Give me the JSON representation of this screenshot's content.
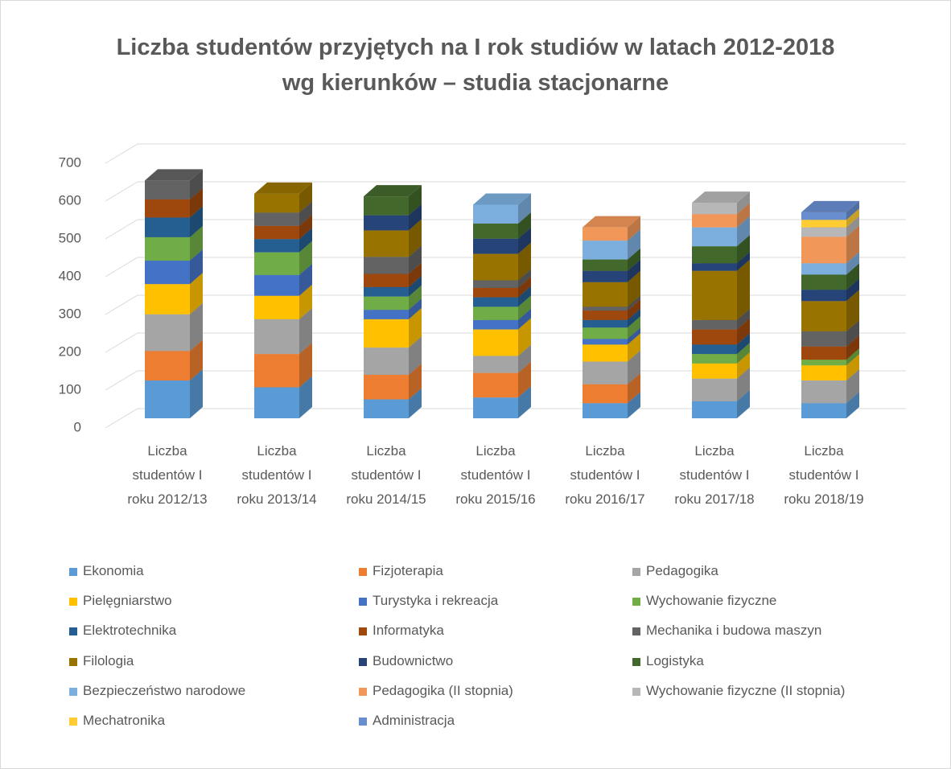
{
  "chart_data": {
    "type": "bar3d_stacked",
    "title": "Liczba studentów przyjętych na I rok studiów w latach 2012-2018 wg kierunków – studia stacjonarne",
    "categories": [
      "Liczba studentów I roku 2012/13",
      "Liczba studentów I roku 2013/14",
      "Liczba studentów I roku 2014/15",
      "Liczba studentów I roku 2015/16",
      "Liczba studentów I roku 2016/17",
      "Liczba studentów I roku 2017/18",
      "Liczba studentów I roku 2018/19"
    ],
    "series": [
      {
        "name": "Ekonomia",
        "color": "#5b9bd5",
        "values": [
          100,
          82,
          50,
          55,
          40,
          45,
          40
        ]
      },
      {
        "name": "Fizjoterapia",
        "color": "#ed7d31",
        "values": [
          78,
          88,
          65,
          65,
          50,
          null,
          null
        ]
      },
      {
        "name": "Pedagogika",
        "color": "#a5a5a5",
        "values": [
          97,
          92,
          72,
          45,
          60,
          60,
          60
        ]
      },
      {
        "name": "Pielęgniarstwo",
        "color": "#ffc000",
        "values": [
          80,
          62,
          75,
          70,
          45,
          40,
          40
        ]
      },
      {
        "name": "Turystyka i rekreacja",
        "color": "#4472c4",
        "values": [
          62,
          55,
          25,
          25,
          15,
          null,
          null
        ]
      },
      {
        "name": "Wychowanie fizyczne",
        "color": "#70ad47",
        "values": [
          62,
          60,
          35,
          35,
          30,
          25,
          15
        ]
      },
      {
        "name": "Elektrotechnika",
        "color": "#255e91",
        "values": [
          52,
          35,
          25,
          25,
          20,
          25,
          null
        ]
      },
      {
        "name": "Informatyka",
        "color": "#9e480e",
        "values": [
          48,
          35,
          35,
          25,
          25,
          40,
          35
        ]
      },
      {
        "name": "Mechanika i budowa maszyn",
        "color": "#636363",
        "values": [
          50,
          35,
          45,
          20,
          10,
          25,
          40
        ]
      },
      {
        "name": "Filologia",
        "color": "#997300",
        "values": [
          null,
          50,
          70,
          70,
          65,
          130,
          80
        ]
      },
      {
        "name": "Budownictwo",
        "color": "#264478",
        "values": [
          null,
          null,
          40,
          40,
          30,
          20,
          30
        ]
      },
      {
        "name": "Logistyka",
        "color": "#43682b",
        "values": [
          null,
          null,
          50,
          40,
          30,
          45,
          40
        ]
      },
      {
        "name": "Bezpieczeństwo narodowe",
        "color": "#7cafdd",
        "values": [
          null,
          null,
          null,
          50,
          50,
          50,
          30
        ]
      },
      {
        "name": "Pedagogika (II stopnia)",
        "color": "#f1975a",
        "values": [
          null,
          null,
          null,
          null,
          35,
          35,
          70
        ]
      },
      {
        "name": "Wychowanie fizyczne (II stopnia)",
        "color": "#b7b7b7",
        "values": [
          null,
          null,
          null,
          null,
          null,
          30,
          25
        ]
      },
      {
        "name": "Mechatronika",
        "color": "#ffcd33",
        "values": [
          null,
          null,
          null,
          null,
          null,
          null,
          20
        ]
      },
      {
        "name": "Administracja",
        "color": "#698ed0",
        "values": [
          null,
          null,
          null,
          null,
          null,
          null,
          20
        ]
      }
    ],
    "ylim": [
      0,
      700
    ],
    "yticks": [
      0,
      100,
      200,
      300,
      400,
      500,
      600,
      700
    ],
    "grid": true
  }
}
